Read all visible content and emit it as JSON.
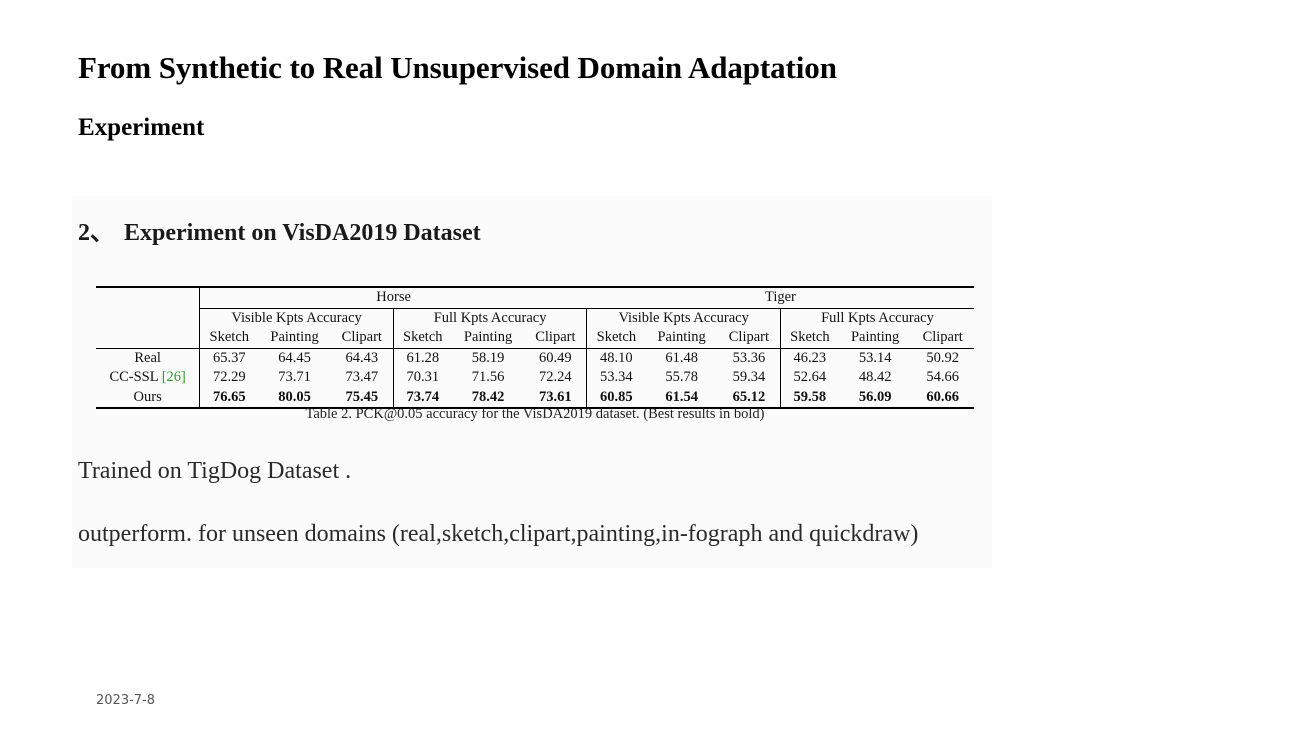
{
  "slide": {
    "title": "From Synthetic to Real Unsupervised Domain Adaptation",
    "subtitle": "Experiment",
    "section": {
      "number": "2、",
      "heading": "Experiment on VisDA2019 Dataset"
    },
    "paragraphs": [
      "Trained on TigDog Dataset .",
      "outperform. for unseen domains (real,sketch,clipart,painting,in-fograph and quickdraw)"
    ],
    "footer_date": "2023-7-8"
  },
  "table": {
    "groups": [
      "Horse",
      "Tiger"
    ],
    "subgroups": [
      "Visible Kpts Accuracy",
      "Full Kpts Accuracy",
      "Visible Kpts Accuracy",
      "Full Kpts Accuracy"
    ],
    "columns": [
      "Sketch",
      "Painting",
      "Clipart",
      "Sketch",
      "Painting",
      "Clipart",
      "Sketch",
      "Painting",
      "Clipart",
      "Sketch",
      "Painting",
      "Clipart"
    ],
    "rows": [
      {
        "method": "Real",
        "cite": "",
        "values": [
          "65.37",
          "64.45",
          "64.43",
          "61.28",
          "58.19",
          "60.49",
          "48.10",
          "61.48",
          "53.36",
          "46.23",
          "53.14",
          "50.92"
        ]
      },
      {
        "method": "CC-SSL",
        "cite": "[26]",
        "values": [
          "72.29",
          "73.71",
          "73.47",
          "70.31",
          "71.56",
          "72.24",
          "53.34",
          "55.78",
          "59.34",
          "52.64",
          "48.42",
          "54.66"
        ]
      },
      {
        "method": "Ours",
        "cite": "",
        "values": [
          "76.65",
          "80.05",
          "75.45",
          "73.74",
          "78.42",
          "73.61",
          "60.85",
          "61.54",
          "65.12",
          "59.58",
          "56.09",
          "60.66"
        ]
      }
    ],
    "caption": "Table 2. PCK@0.05 accuracy for the VisDA2019 dataset. (Best results in bold)"
  }
}
